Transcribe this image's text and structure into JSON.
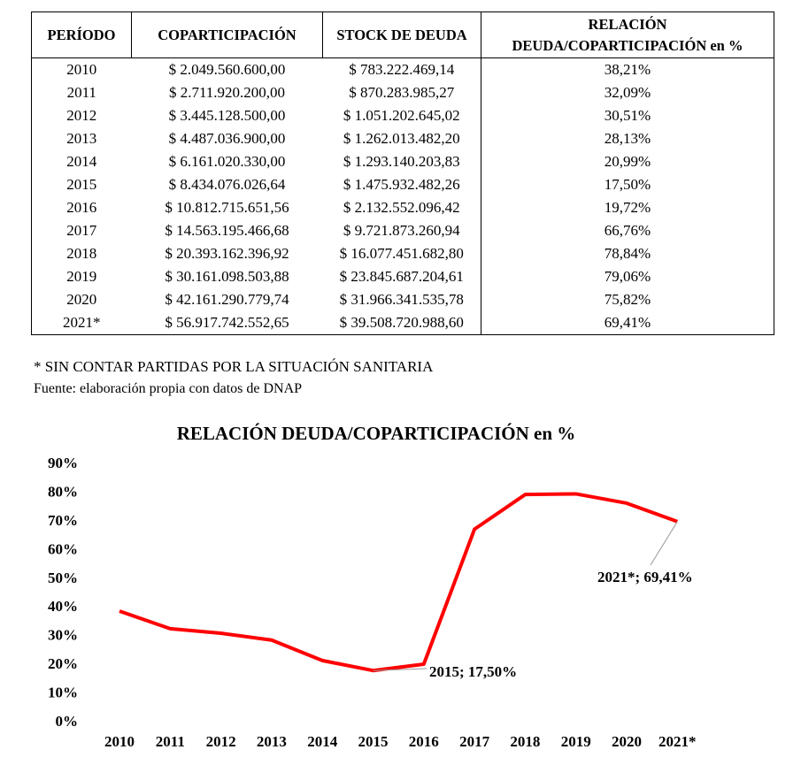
{
  "table": {
    "headers": [
      "PERÍODO",
      "COPARTICIPACIÓN",
      "STOCK DE DEUDA",
      "RELACIÓN DEUDA/COPARTICIPACIÓN en %"
    ],
    "rows": [
      [
        "2010",
        "$ 2.049.560.600,00",
        "$ 783.222.469,14",
        "38,21%"
      ],
      [
        "2011",
        "$ 2.711.920.200,00",
        "$ 870.283.985,27",
        "32,09%"
      ],
      [
        "2012",
        "$ 3.445.128.500,00",
        "$ 1.051.202.645,02",
        "30,51%"
      ],
      [
        "2013",
        "$ 4.487.036.900,00",
        "$ 1.262.013.482,20",
        "28,13%"
      ],
      [
        "2014",
        "$ 6.161.020.330,00",
        "$ 1.293.140.203,83",
        "20,99%"
      ],
      [
        "2015",
        "$ 8.434.076.026,64",
        "$ 1.475.932.482,26",
        "17,50%"
      ],
      [
        "2016",
        "$ 10.812.715.651,56",
        "$ 2.132.552.096,42",
        "19,72%"
      ],
      [
        "2017",
        "$ 14.563.195.466,68",
        "$ 9.721.873.260,94",
        "66,76%"
      ],
      [
        "2018",
        "$ 20.393.162.396,92",
        "$ 16.077.451.682,80",
        "78,84%"
      ],
      [
        "2019",
        "$ 30.161.098.503,88",
        "$ 23.845.687.204,61",
        "79,06%"
      ],
      [
        "2020",
        "$ 42.161.290.779,74",
        "$ 31.966.341.535,78",
        "75,82%"
      ],
      [
        "2021*",
        "$ 56.917.742.552,65",
        "$ 39.508.720.988,60",
        "69,41%"
      ]
    ]
  },
  "notes": {
    "footnote": "* SIN CONTAR PARTIDAS POR LA SITUACIÓN SANITARIA",
    "source": "Fuente: elaboración propia con datos de DNAP"
  },
  "chart_data": {
    "type": "line",
    "title": "RELACIÓN DEUDA/COPARTICIPACIÓN en %",
    "categories": [
      "2010",
      "2011",
      "2012",
      "2013",
      "2014",
      "2015",
      "2016",
      "2017",
      "2018",
      "2019",
      "2020",
      "2021*"
    ],
    "series": [
      {
        "name": "Relación",
        "values": [
          38.21,
          32.09,
          30.51,
          28.13,
          20.99,
          17.5,
          19.72,
          66.76,
          78.84,
          79.06,
          75.82,
          69.41
        ],
        "color": "#ff0000"
      }
    ],
    "yticks": [
      "0%",
      "10%",
      "20%",
      "30%",
      "40%",
      "50%",
      "60%",
      "70%",
      "80%",
      "90%"
    ],
    "ylim": [
      0,
      90
    ],
    "grid": false,
    "annotations": [
      {
        "index": 5,
        "text": "2015; 17,50%"
      },
      {
        "index": 11,
        "text": "2021*; 69,41%"
      }
    ]
  }
}
